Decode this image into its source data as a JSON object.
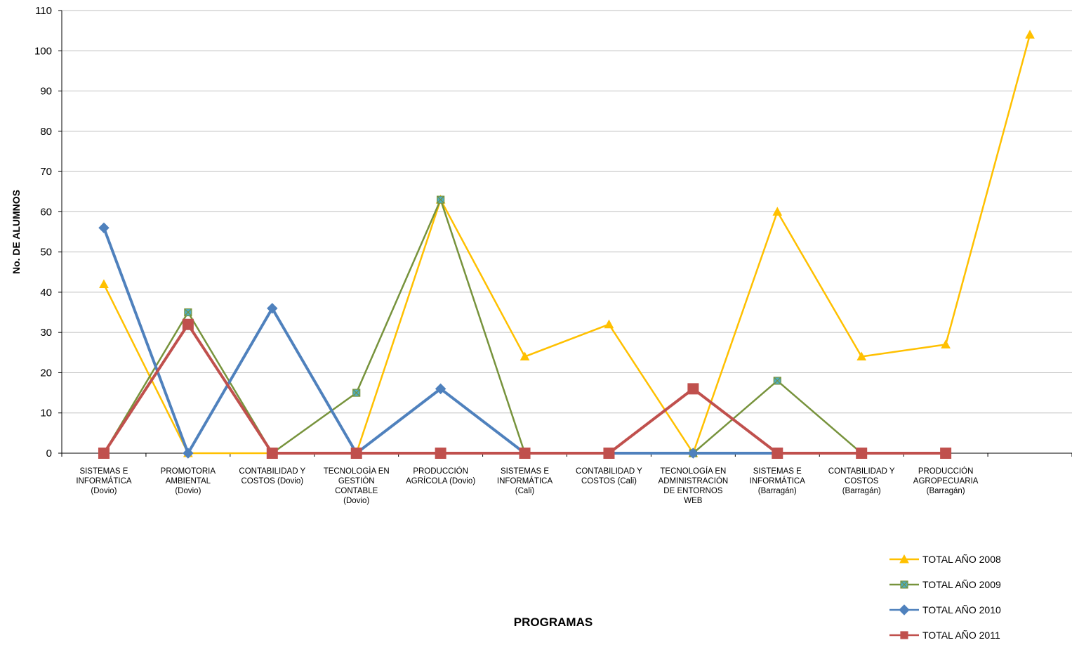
{
  "chart_data": {
    "type": "line",
    "xlabel": "PROGRAMAS",
    "ylabel": "No. DE ALUMNOS",
    "ylim": [
      0,
      110
    ],
    "yticks": [
      0,
      10,
      20,
      30,
      40,
      50,
      60,
      70,
      80,
      90,
      100,
      110
    ],
    "grid": "horizontal",
    "legend_position": "bottom-right",
    "categories": [
      [
        "SISTEMAS E",
        "INFORMÁTICA",
        "(Dovio)"
      ],
      [
        "PROMOTORIA",
        "AMBIENTAL",
        "(Dovio)"
      ],
      [
        "CONTABILIDAD Y",
        "COSTOS  (Dovio)"
      ],
      [
        "TECNOLOGÌA EN",
        "GESTIÒN",
        "CONTABLE",
        "(Dovio)"
      ],
      [
        "PRODUCCIÓN",
        "AGRÍCOLA  (Dovio)"
      ],
      [
        "SISTEMAS E",
        "INFORMÁTICA",
        "(Cali)"
      ],
      [
        "CONTABILIDAD Y",
        "COSTOS (Cali)"
      ],
      [
        "TECNOLOGÍA EN",
        "ADMINISTRACIÓN",
        "DE ENTORNOS",
        "WEB"
      ],
      [
        "SISTEMAS E",
        "INFORMÁTICA",
        "(Barragán)"
      ],
      [
        "CONTABILIDAD Y",
        "COSTOS",
        "(Barragán)"
      ],
      [
        "PRODUCCIÓN",
        "AGROPECUARIA",
        "(Barragán)"
      ],
      [
        ""
      ]
    ],
    "series": [
      {
        "name": "TOTAL AÑO 2008",
        "color": "#FFC000",
        "marker": "triangle",
        "values": [
          42,
          0,
          0,
          0,
          63,
          24,
          32,
          0,
          60,
          24,
          27,
          104
        ]
      },
      {
        "name": "TOTAL AÑO 2009",
        "color": "#77933C",
        "marker": "square-x",
        "values": [
          0,
          35,
          0,
          15,
          63,
          0,
          null,
          0,
          18,
          0,
          null,
          null
        ]
      },
      {
        "name": "TOTAL AÑO 2010",
        "color": "#4F81BD",
        "marker": "diamond",
        "values": [
          56,
          0,
          36,
          0,
          16,
          0,
          0,
          0,
          0,
          0,
          null,
          null
        ]
      },
      {
        "name": "TOTAL AÑO 2011",
        "color": "#C0504D",
        "marker": "square",
        "values": [
          0,
          32,
          0,
          0,
          0,
          0,
          0,
          16,
          0,
          0,
          0,
          null
        ]
      }
    ]
  }
}
